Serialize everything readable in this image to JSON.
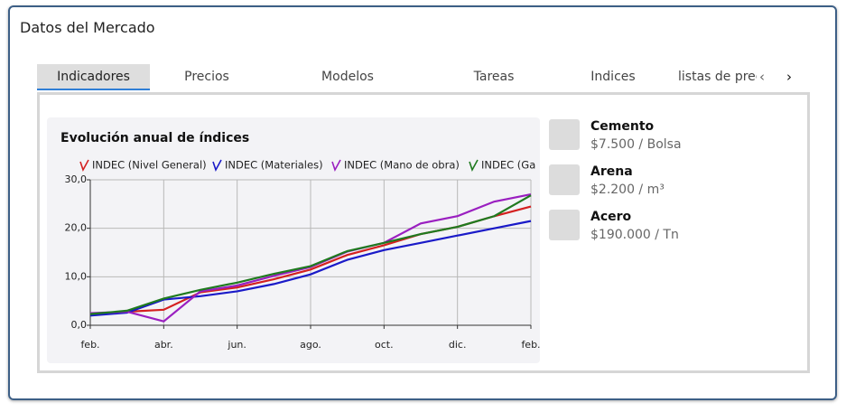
{
  "header": {
    "title": "Datos del Mercado"
  },
  "tabs": {
    "items": [
      "Indicadores",
      "Precios",
      "Modelos",
      "Tareas",
      "Indices",
      "listas de prec"
    ],
    "active": 0,
    "prev": "‹",
    "next": "›"
  },
  "products": [
    {
      "name": "Cemento",
      "price": "$7.500 / Bolsa"
    },
    {
      "name": "Arena",
      "price": "$2.200 / m³"
    },
    {
      "name": "Acero",
      "price": "$190.000 / Tn"
    }
  ],
  "chart_data": {
    "type": "line",
    "title": "Evolución anual de índices",
    "x": [
      "feb.",
      null,
      "abr.",
      null,
      "jun.",
      null,
      "ago.",
      null,
      "oct.",
      null,
      "dic.",
      null,
      "feb."
    ],
    "series": [
      {
        "name": "INDEC (Nivel General)",
        "color": "#d42020",
        "values": [
          2.3,
          2.8,
          3.2,
          6.8,
          7.8,
          9.5,
          11.5,
          14.5,
          16.5,
          18.8,
          20.3,
          22.5,
          24.5
        ]
      },
      {
        "name": "INDEC (Materiales)",
        "color": "#1a1ac8",
        "values": [
          2.0,
          2.6,
          5.3,
          6.0,
          7.0,
          8.5,
          10.5,
          13.5,
          15.5,
          17.0,
          18.5,
          20.0,
          21.5
        ]
      },
      {
        "name": "INDEC (Mano de obra)",
        "color": "#9a1fc0",
        "values": [
          2.5,
          2.8,
          0.8,
          7.0,
          8.2,
          10.2,
          12.0,
          15.2,
          17.0,
          21.0,
          22.5,
          25.5,
          27.0
        ]
      },
      {
        "name": "INDEC (Ga",
        "color": "#1f7a1f",
        "values": [
          2.3,
          3.0,
          5.5,
          7.3,
          8.8,
          10.6,
          12.2,
          15.3,
          17.0,
          18.8,
          20.3,
          22.5,
          26.8
        ]
      }
    ],
    "ylim": [
      0,
      30
    ],
    "yticks": [
      {
        "value": 0,
        "label": "0,0"
      },
      {
        "value": 10,
        "label": "10,0"
      },
      {
        "value": 20,
        "label": "20,0"
      },
      {
        "value": 30,
        "label": "30,0"
      }
    ],
    "grid": true
  }
}
